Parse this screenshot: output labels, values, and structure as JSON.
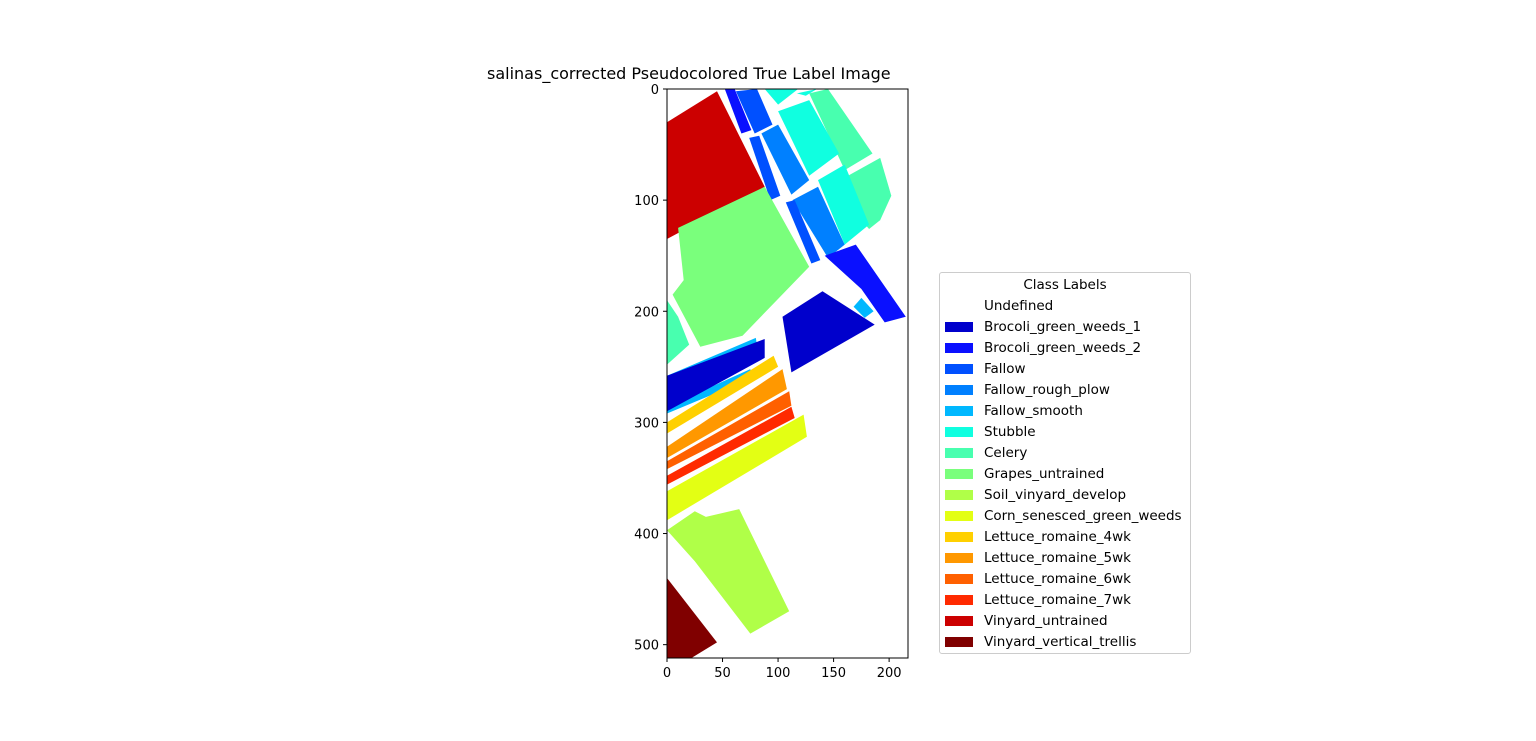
{
  "chart_data": {
    "type": "heatmap",
    "title": "salinas_corrected Pseudocolored True Label Image",
    "xlabel": "",
    "ylabel": "",
    "xlim": [
      0,
      217
    ],
    "ylim": [
      512,
      0
    ],
    "x_ticks": [
      0,
      50,
      100,
      150,
      200
    ],
    "y_ticks": [
      0,
      100,
      200,
      300,
      400,
      500
    ],
    "grid": false,
    "colormap": "jet",
    "legend": {
      "title": "Class Labels",
      "placement": "right",
      "entries": [
        {
          "label": "Undefined",
          "color": "#ffffff"
        },
        {
          "label": "Brocoli_green_weeds_1",
          "color": "#0000cc"
        },
        {
          "label": "Brocoli_green_weeds_2",
          "color": "#0a10ff"
        },
        {
          "label": "Fallow",
          "color": "#0050ff"
        },
        {
          "label": "Fallow_rough_plow",
          "color": "#0080ff"
        },
        {
          "label": "Fallow_smooth",
          "color": "#00b8ff"
        },
        {
          "label": "Stubble",
          "color": "#10ffe0"
        },
        {
          "label": "Celery",
          "color": "#48ffaf"
        },
        {
          "label": "Grapes_untrained",
          "color": "#7aff7c"
        },
        {
          "label": "Soil_vinyard_develop",
          "color": "#b0ff48"
        },
        {
          "label": "Corn_senesced_green_weeds",
          "color": "#e3ff14"
        },
        {
          "label": "Lettuce_romaine_4wk",
          "color": "#ffd000"
        },
        {
          "label": "Lettuce_romaine_5wk",
          "color": "#ff9800"
        },
        {
          "label": "Lettuce_romaine_6wk",
          "color": "#ff6000"
        },
        {
          "label": "Lettuce_romaine_7wk",
          "color": "#ff2a00"
        },
        {
          "label": "Vinyard_untrained",
          "color": "#cc0000"
        },
        {
          "label": "Vinyard_vertical_trellis",
          "color": "#800000"
        }
      ]
    },
    "regions": [
      {
        "class": "Vinyard_untrained",
        "polygon": [
          [
            0,
            30
          ],
          [
            45,
            2
          ],
          [
            88,
            88
          ],
          [
            0,
            135
          ]
        ]
      },
      {
        "class": "Brocoli_green_weeds_2",
        "polygon": [
          [
            52,
            0
          ],
          [
            61,
            0
          ],
          [
            76,
            37
          ],
          [
            67,
            40
          ]
        ]
      },
      {
        "class": "Fallow",
        "polygon": [
          [
            62,
            2
          ],
          [
            81,
            0
          ],
          [
            95,
            32
          ],
          [
            79,
            40
          ]
        ]
      },
      {
        "class": "Stubble",
        "polygon": [
          [
            88,
            0
          ],
          [
            118,
            0
          ],
          [
            100,
            14
          ]
        ]
      },
      {
        "class": "Stubble",
        "polygon": [
          [
            117,
            4
          ],
          [
            135,
            0
          ],
          [
            125,
            6
          ]
        ]
      },
      {
        "class": "Celery",
        "polygon": [
          [
            128,
            4
          ],
          [
            145,
            0
          ],
          [
            185,
            58
          ],
          [
            160,
            73
          ]
        ]
      },
      {
        "class": "Stubble",
        "polygon": [
          [
            100,
            20
          ],
          [
            128,
            10
          ],
          [
            155,
            58
          ],
          [
            128,
            78
          ]
        ]
      },
      {
        "class": "Fallow",
        "polygon": [
          [
            74,
            44
          ],
          [
            83,
            42
          ],
          [
            102,
            96
          ],
          [
            93,
            100
          ]
        ]
      },
      {
        "class": "Fallow_rough_plow",
        "polygon": [
          [
            85,
            40
          ],
          [
            100,
            32
          ],
          [
            128,
            82
          ],
          [
            112,
            95
          ]
        ]
      },
      {
        "class": "Celery",
        "polygon": [
          [
            163,
            78
          ],
          [
            192,
            62
          ],
          [
            202,
            96
          ],
          [
            192,
            118
          ],
          [
            182,
            126
          ],
          [
            168,
            110
          ]
        ]
      },
      {
        "class": "Stubble",
        "polygon": [
          [
            136,
            82
          ],
          [
            160,
            68
          ],
          [
            182,
            122
          ],
          [
            160,
            140
          ]
        ]
      },
      {
        "class": "Fallow_rough_plow",
        "polygon": [
          [
            113,
            100
          ],
          [
            136,
            88
          ],
          [
            160,
            140
          ],
          [
            145,
            152
          ]
        ]
      },
      {
        "class": "Fallow",
        "polygon": [
          [
            107,
            102
          ],
          [
            115,
            100
          ],
          [
            138,
            154
          ],
          [
            130,
            157
          ]
        ]
      },
      {
        "class": "Grapes_untrained",
        "polygon": [
          [
            10,
            125
          ],
          [
            88,
            88
          ],
          [
            128,
            160
          ],
          [
            68,
            222
          ],
          [
            30,
            232
          ],
          [
            5,
            185
          ],
          [
            15,
            172
          ]
        ]
      },
      {
        "class": "Celery",
        "polygon": [
          [
            0,
            190
          ],
          [
            10,
            205
          ],
          [
            20,
            230
          ],
          [
            0,
            248
          ]
        ]
      },
      {
        "class": "Brocoli_green_weeds_2",
        "polygon": [
          [
            142,
            150
          ],
          [
            170,
            140
          ],
          [
            215,
            205
          ],
          [
            196,
            210
          ],
          [
            175,
            180
          ]
        ]
      },
      {
        "class": "Brocoli_green_weeds_1",
        "polygon": [
          [
            104,
            205
          ],
          [
            140,
            182
          ],
          [
            187,
            212
          ],
          [
            112,
            255
          ]
        ]
      },
      {
        "class": "Fallow_smooth",
        "polygon": [
          [
            0,
            258
          ],
          [
            80,
            224
          ],
          [
            82,
            236
          ],
          [
            0,
            266
          ]
        ]
      },
      {
        "class": "Fallow_smooth",
        "polygon": [
          [
            0,
            286
          ],
          [
            75,
            252
          ],
          [
            77,
            260
          ],
          [
            0,
            292
          ]
        ]
      },
      {
        "class": "Fallow_smooth",
        "polygon": [
          [
            175,
            188
          ],
          [
            186,
            200
          ],
          [
            178,
            206
          ],
          [
            168,
            196
          ]
        ]
      },
      {
        "class": "Fallow_smooth",
        "polygon": [
          [
            58,
            236
          ],
          [
            70,
            240
          ],
          [
            68,
            248
          ],
          [
            56,
            244
          ]
        ]
      },
      {
        "class": "Brocoli_green_weeds_1",
        "polygon": [
          [
            0,
            258
          ],
          [
            88,
            225
          ],
          [
            88,
            242
          ],
          [
            0,
            290
          ]
        ]
      },
      {
        "class": "Lettuce_romaine_4wk",
        "polygon": [
          [
            0,
            300
          ],
          [
            96,
            240
          ],
          [
            100,
            250
          ],
          [
            0,
            310
          ]
        ]
      },
      {
        "class": "Lettuce_romaine_5wk",
        "polygon": [
          [
            0,
            322
          ],
          [
            104,
            252
          ],
          [
            108,
            270
          ],
          [
            0,
            332
          ]
        ]
      },
      {
        "class": "Lettuce_romaine_6wk",
        "polygon": [
          [
            0,
            335
          ],
          [
            110,
            272
          ],
          [
            112,
            285
          ],
          [
            0,
            342
          ]
        ]
      },
      {
        "class": "Lettuce_romaine_7wk",
        "polygon": [
          [
            0,
            348
          ],
          [
            112,
            286
          ],
          [
            115,
            296
          ],
          [
            0,
            356
          ]
        ]
      },
      {
        "class": "Corn_senesced_green_weeds",
        "polygon": [
          [
            0,
            362
          ],
          [
            123,
            293
          ],
          [
            126,
            313
          ],
          [
            0,
            388
          ]
        ]
      },
      {
        "class": "Soil_vinyard_develop",
        "polygon": [
          [
            0,
            397
          ],
          [
            25,
            380
          ],
          [
            35,
            385
          ],
          [
            65,
            378
          ],
          [
            110,
            470
          ],
          [
            75,
            490
          ],
          [
            25,
            425
          ]
        ]
      },
      {
        "class": "Vinyard_vertical_trellis",
        "polygon": [
          [
            0,
            440
          ],
          [
            45,
            498
          ],
          [
            22,
            512
          ],
          [
            0,
            512
          ]
        ]
      }
    ]
  }
}
